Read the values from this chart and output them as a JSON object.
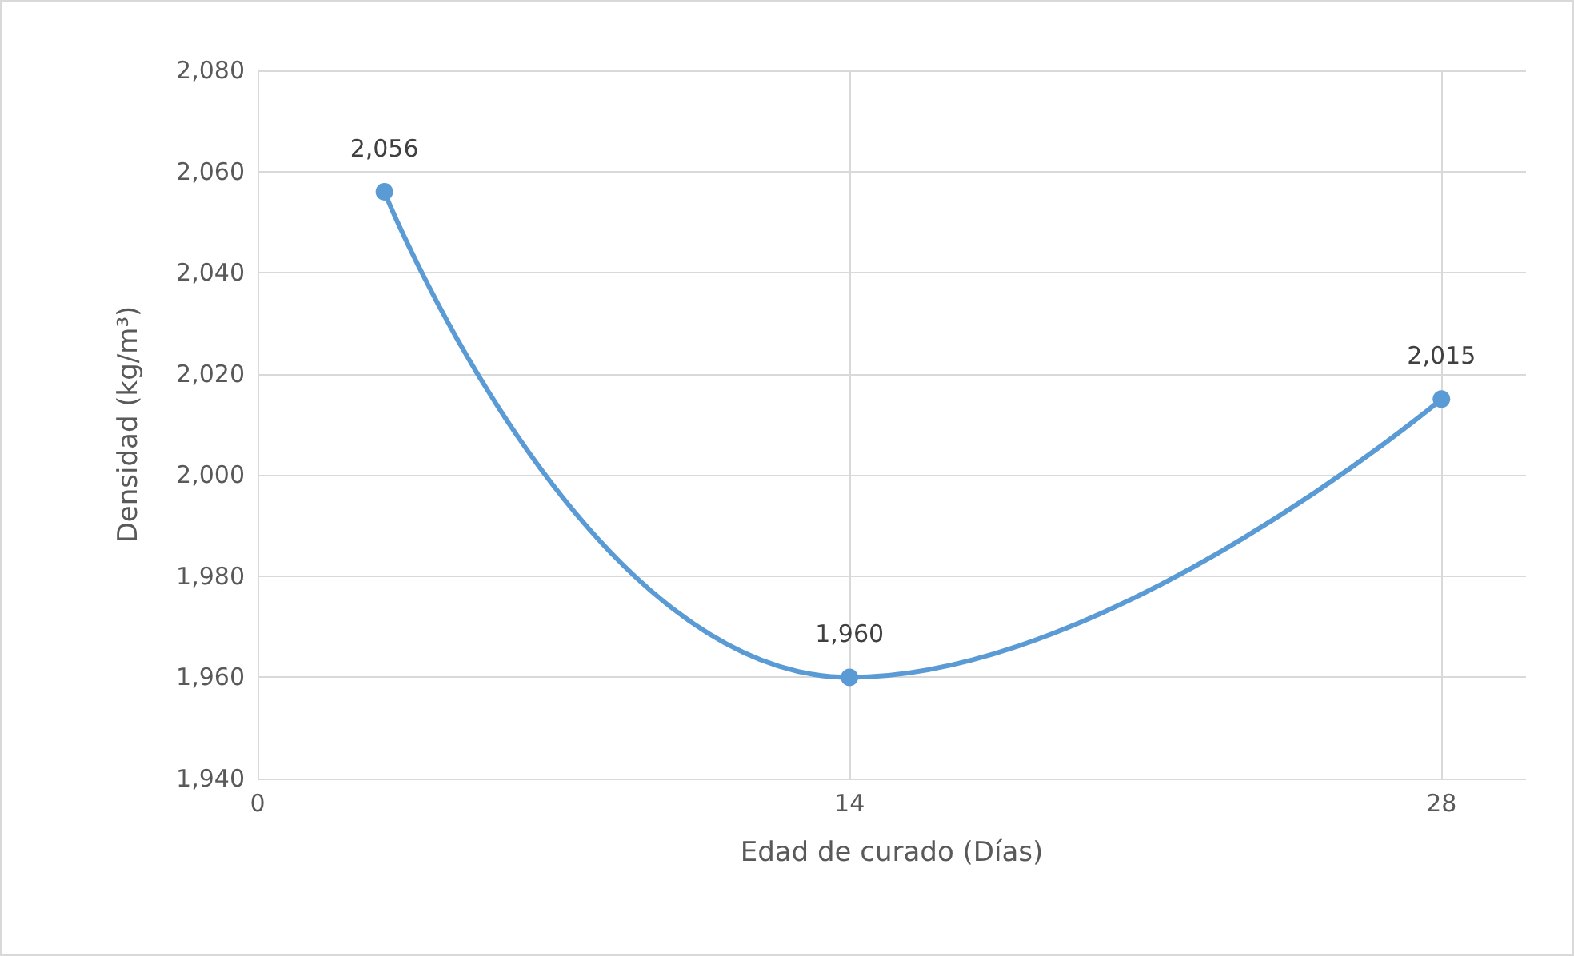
{
  "chart_data": {
    "type": "line",
    "xlabel": "Edad de curado (Días)",
    "ylabel": "Densidad (kg/m³)",
    "x": [
      3,
      14,
      28
    ],
    "series": [
      {
        "color": "#5b9bd5",
        "values": [
          2056,
          1960,
          2015
        ],
        "value_labels": [
          "2,056",
          "1,960",
          "2,015"
        ]
      }
    ],
    "xlim": [
      0,
      30
    ],
    "xticks": [
      0,
      14,
      28
    ],
    "ylim": [
      1940,
      2080
    ],
    "yticks": [
      {
        "value": 1940,
        "label": "1,940"
      },
      {
        "value": 1960,
        "label": "1,960"
      },
      {
        "value": 1980,
        "label": "1,980"
      },
      {
        "value": 2000,
        "label": "2,000"
      },
      {
        "value": 2020,
        "label": "2,020"
      },
      {
        "value": 2040,
        "label": "2,040"
      },
      {
        "value": 2060,
        "label": "2,060"
      },
      {
        "value": 2080,
        "label": "2,080"
      }
    ],
    "grid": true,
    "marker": "circle",
    "line_style": "solid"
  }
}
